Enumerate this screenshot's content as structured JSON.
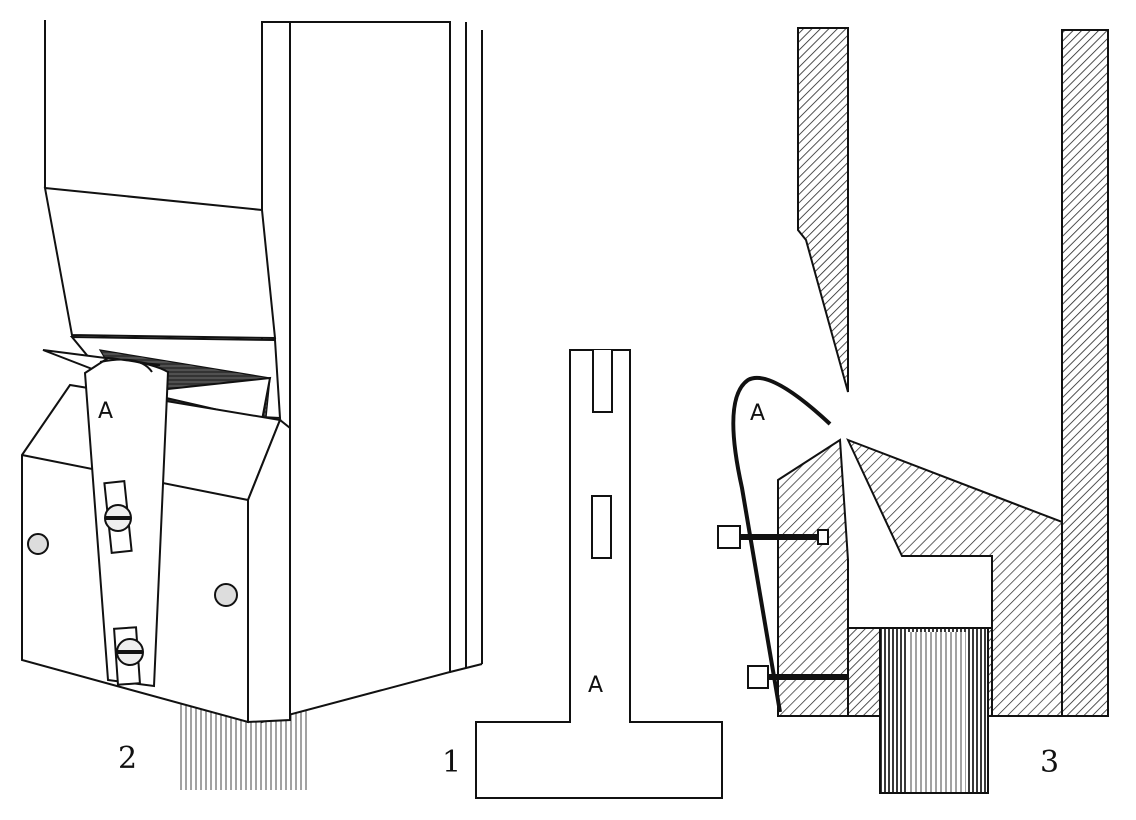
{
  "figure": {
    "panels": [
      {
        "id": "fig2",
        "number": "2",
        "part_label": "A"
      },
      {
        "id": "fig1",
        "number": "1",
        "part_label": "A"
      },
      {
        "id": "fig3",
        "number": "3",
        "part_label": "A"
      }
    ],
    "colors": {
      "ink": "#111111",
      "paper": "#ffffff",
      "hatch": "#222222",
      "cylinder": "#555555"
    }
  }
}
